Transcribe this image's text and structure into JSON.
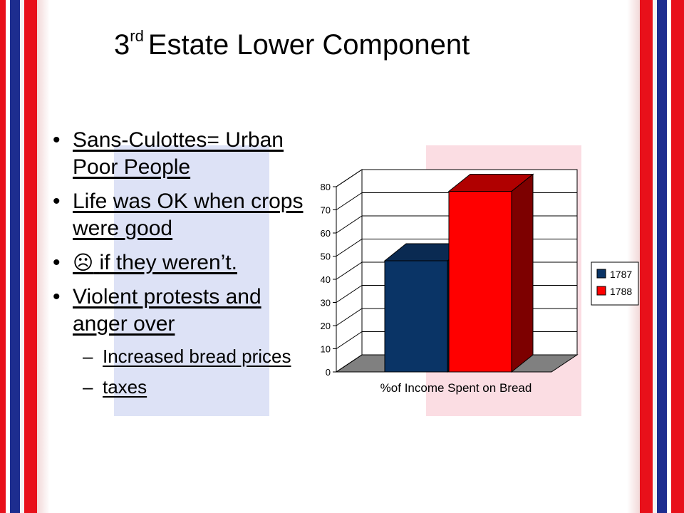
{
  "slide": {
    "title_prefix": "3",
    "title_sup": "rd",
    "title_rest": "Estate Lower Component",
    "bullets": [
      "Sans-Culottes= Urban Poor People",
      "Life was OK when crops were good",
      "if they weren’t.",
      "Violent protests and anger over"
    ],
    "frown_icon": "frown-face-icon",
    "sub_bullets": [
      "Increased bread prices",
      "taxes"
    ]
  },
  "chart_data": {
    "type": "bar",
    "categories": [
      "%of Income Spent on Bread"
    ],
    "series": [
      {
        "name": "1787",
        "values": [
          48
        ],
        "color": "#0a3466"
      },
      {
        "name": "1788",
        "values": [
          78
        ],
        "color": "#ff0000"
      }
    ],
    "xlabel": "%of Income Spent on Bread",
    "ylim": [
      0,
      80
    ],
    "yticks": [
      "0",
      "10",
      "20",
      "30",
      "40",
      "50",
      "60",
      "70",
      "80"
    ],
    "legend": "right",
    "grid": true
  }
}
